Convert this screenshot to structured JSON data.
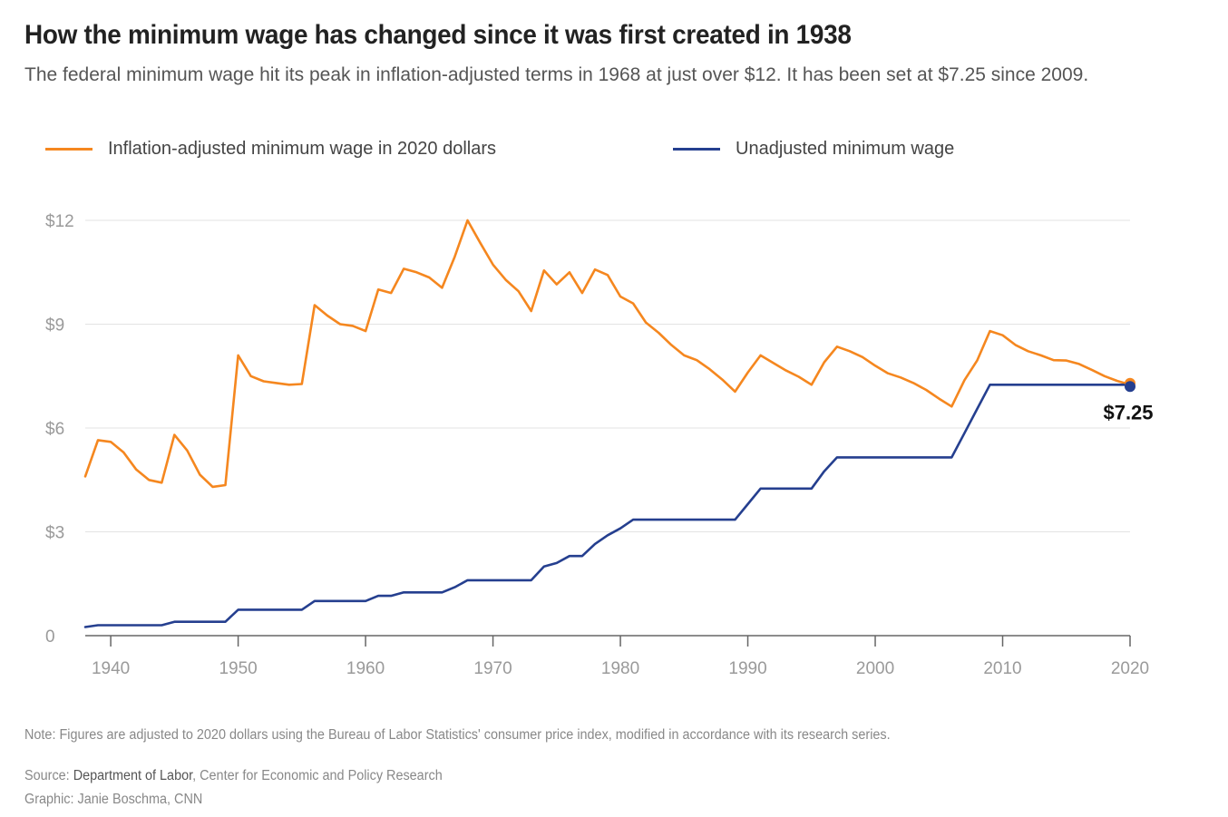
{
  "header": {
    "title": "How the minimum wage has changed since it was first created in 1938",
    "subtitle": "The federal minimum wage hit its peak in inflation-adjusted terms in 1968 at just over $12. It has been set at $7.25 since 2009."
  },
  "legend": {
    "items": [
      {
        "label": "Inflation-adjusted minimum wage in 2020 dollars",
        "color": "#f5871f"
      },
      {
        "label": "Unadjusted minimum wage",
        "color": "#253f8f"
      }
    ]
  },
  "chart_data": {
    "type": "line",
    "title": "",
    "xlabel": "",
    "ylabel": "",
    "xlim": [
      1938,
      2020
    ],
    "ylim": [
      0,
      12
    ],
    "grid": true,
    "legend_position": "top",
    "x_ticks": [
      1940,
      1950,
      1960,
      1970,
      1980,
      1990,
      2000,
      2010,
      2020
    ],
    "x_tick_labels": [
      "1940",
      "1950",
      "1960",
      "1970",
      "1980",
      "1990",
      "2000",
      "2010",
      "2020"
    ],
    "y_ticks": [
      0,
      3,
      6,
      9,
      12
    ],
    "y_tick_labels": [
      "0",
      "$3",
      "$6",
      "$9",
      "$12"
    ],
    "end_label": "$7.25",
    "series": [
      {
        "name": "Inflation-adjusted minimum wage in 2020 dollars",
        "color": "#f5871f",
        "x": [
          1938,
          1939,
          1940,
          1941,
          1942,
          1943,
          1944,
          1945,
          1946,
          1947,
          1948,
          1949,
          1950,
          1951,
          1952,
          1953,
          1954,
          1955,
          1956,
          1957,
          1958,
          1959,
          1960,
          1961,
          1962,
          1963,
          1964,
          1965,
          1966,
          1967,
          1968,
          1969,
          1970,
          1971,
          1972,
          1973,
          1974,
          1975,
          1976,
          1977,
          1978,
          1979,
          1980,
          1981,
          1982,
          1983,
          1984,
          1985,
          1986,
          1987,
          1988,
          1989,
          1990,
          1991,
          1992,
          1993,
          1994,
          1995,
          1996,
          1997,
          1998,
          1999,
          2000,
          2001,
          2002,
          2003,
          2004,
          2005,
          2006,
          2007,
          2008,
          2009,
          2010,
          2011,
          2012,
          2013,
          2014,
          2015,
          2016,
          2017,
          2018,
          2019,
          2020
        ],
        "values": [
          4.6,
          5.65,
          5.6,
          5.3,
          4.8,
          4.5,
          4.42,
          5.8,
          5.35,
          4.65,
          4.3,
          4.35,
          8.1,
          7.5,
          7.35,
          7.3,
          7.25,
          7.27,
          9.55,
          9.25,
          9.0,
          8.95,
          8.8,
          10.0,
          9.9,
          10.6,
          10.5,
          10.35,
          10.05,
          10.95,
          12.0,
          11.35,
          10.72,
          10.28,
          9.95,
          9.38,
          10.55,
          10.15,
          10.5,
          9.9,
          10.58,
          10.42,
          9.8,
          9.6,
          9.05,
          8.75,
          8.4,
          8.1,
          7.96,
          7.7,
          7.4,
          7.05,
          7.6,
          8.1,
          7.88,
          7.66,
          7.48,
          7.25,
          7.9,
          8.35,
          8.22,
          8.05,
          7.8,
          7.58,
          7.46,
          7.3,
          7.1,
          6.85,
          6.62,
          7.38,
          7.95,
          8.8,
          8.68,
          8.4,
          8.22,
          8.1,
          7.96,
          7.95,
          7.85,
          7.68,
          7.5,
          7.36,
          7.25
        ]
      },
      {
        "name": "Unadjusted minimum wage",
        "color": "#253f8f",
        "x": [
          1938,
          1939,
          1940,
          1941,
          1942,
          1943,
          1944,
          1945,
          1946,
          1947,
          1948,
          1949,
          1950,
          1951,
          1952,
          1953,
          1954,
          1955,
          1956,
          1957,
          1958,
          1959,
          1960,
          1961,
          1962,
          1963,
          1964,
          1965,
          1966,
          1967,
          1968,
          1969,
          1970,
          1971,
          1972,
          1973,
          1974,
          1975,
          1976,
          1977,
          1978,
          1979,
          1980,
          1981,
          1982,
          1983,
          1984,
          1985,
          1986,
          1987,
          1988,
          1989,
          1990,
          1991,
          1992,
          1993,
          1994,
          1995,
          1996,
          1997,
          1998,
          1999,
          2000,
          2001,
          2002,
          2003,
          2004,
          2005,
          2006,
          2007,
          2008,
          2009,
          2010,
          2011,
          2012,
          2013,
          2014,
          2015,
          2016,
          2017,
          2018,
          2019,
          2020
        ],
        "values": [
          0.25,
          0.3,
          0.3,
          0.3,
          0.3,
          0.3,
          0.3,
          0.4,
          0.4,
          0.4,
          0.4,
          0.4,
          0.75,
          0.75,
          0.75,
          0.75,
          0.75,
          0.75,
          1.0,
          1.0,
          1.0,
          1.0,
          1.0,
          1.15,
          1.15,
          1.25,
          1.25,
          1.25,
          1.25,
          1.4,
          1.6,
          1.6,
          1.6,
          1.6,
          1.6,
          1.6,
          2.0,
          2.1,
          2.3,
          2.3,
          2.65,
          2.9,
          3.1,
          3.35,
          3.35,
          3.35,
          3.35,
          3.35,
          3.35,
          3.35,
          3.35,
          3.35,
          3.8,
          4.25,
          4.25,
          4.25,
          4.25,
          4.25,
          4.75,
          5.15,
          5.15,
          5.15,
          5.15,
          5.15,
          5.15,
          5.15,
          5.15,
          5.15,
          5.15,
          5.85,
          6.55,
          7.25,
          7.25,
          7.25,
          7.25,
          7.25,
          7.25,
          7.25,
          7.25,
          7.25,
          7.25,
          7.25,
          7.25
        ]
      }
    ]
  },
  "footer": {
    "note": "Note: Figures are adjusted to 2020 dollars using the Bureau of Labor Statistics' consumer price index, modified in accordance with its research series.",
    "source_prefix": "Source: ",
    "source_link": "Department of Labor",
    "source_rest": ", Center for Economic and Policy Research",
    "credit": "Graphic: Janie Boschma, CNN"
  }
}
